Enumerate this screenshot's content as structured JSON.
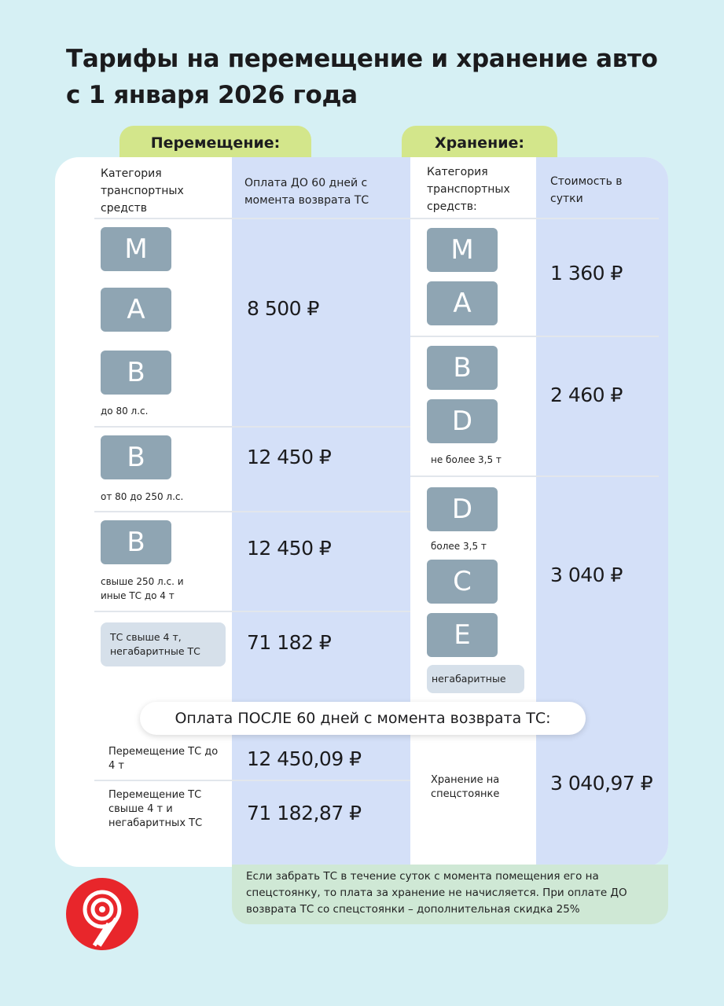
{
  "title": "Тарифы на перемещение и хранение авто с 1 января 2026 года",
  "colors": {
    "background": "#d6f0f4",
    "tab": "#d3e68b",
    "blue_column": "#d4e0f8",
    "badge": "#8fa5b3",
    "note": "#cfe8d5",
    "logo": "#e8262b"
  },
  "moving": {
    "tab": "Перемещение:",
    "header_category": "Категория транспортных средств",
    "header_price": "Оплата ДО 60 дней с момента возврата ТС",
    "rows": [
      {
        "badges": [
          "M",
          "A",
          "B"
        ],
        "caption": "до 80 л.с.",
        "price": "8 500 ₽"
      },
      {
        "badges": [
          "B"
        ],
        "caption": "от 80 до 250 л.с.",
        "price": "12 450 ₽"
      },
      {
        "badges": [
          "B"
        ],
        "caption": "свыше 250 л.с. и иные ТС до 4 т",
        "price": "12 450 ₽"
      },
      {
        "box": "ТС свыше 4 т, негабаритные ТС",
        "price": "71 182 ₽"
      }
    ]
  },
  "storage": {
    "tab": "Хранение:",
    "header_category": "Категория транспортных средств:",
    "header_price": "Стоимость в сутки",
    "rows": [
      {
        "badges": [
          "M",
          "A"
        ],
        "price": "1 360 ₽"
      },
      {
        "badges": [
          "B",
          "D"
        ],
        "caption": "не более 3,5 т",
        "price": "2 460 ₽"
      },
      {
        "badges": [
          "D",
          "C",
          "E"
        ],
        "caption": "более 3,5 т",
        "box": "негабаритные",
        "price": "3 040 ₽"
      }
    ]
  },
  "after": {
    "title": "Оплата ПОСЛЕ 60 дней с момента возврата ТС:",
    "moving_rows": [
      {
        "label": "Перемещение ТС до 4 т",
        "price": "12 450,09 ₽"
      },
      {
        "label": "Перемещение ТС свыше 4 т и негабаритных ТС",
        "price": "71 182,87 ₽"
      }
    ],
    "storage_label": "Хранение на спецстоянке",
    "storage_price": "3 040,97 ₽"
  },
  "note": "Если забрать ТС в течение суток с момента помещения его на спецстоянку, то плата за хранение не начисляется. При оплате ДО возврата ТС со спецстоянки – дополнительная скидка 25%",
  "logo": "logo-icon"
}
